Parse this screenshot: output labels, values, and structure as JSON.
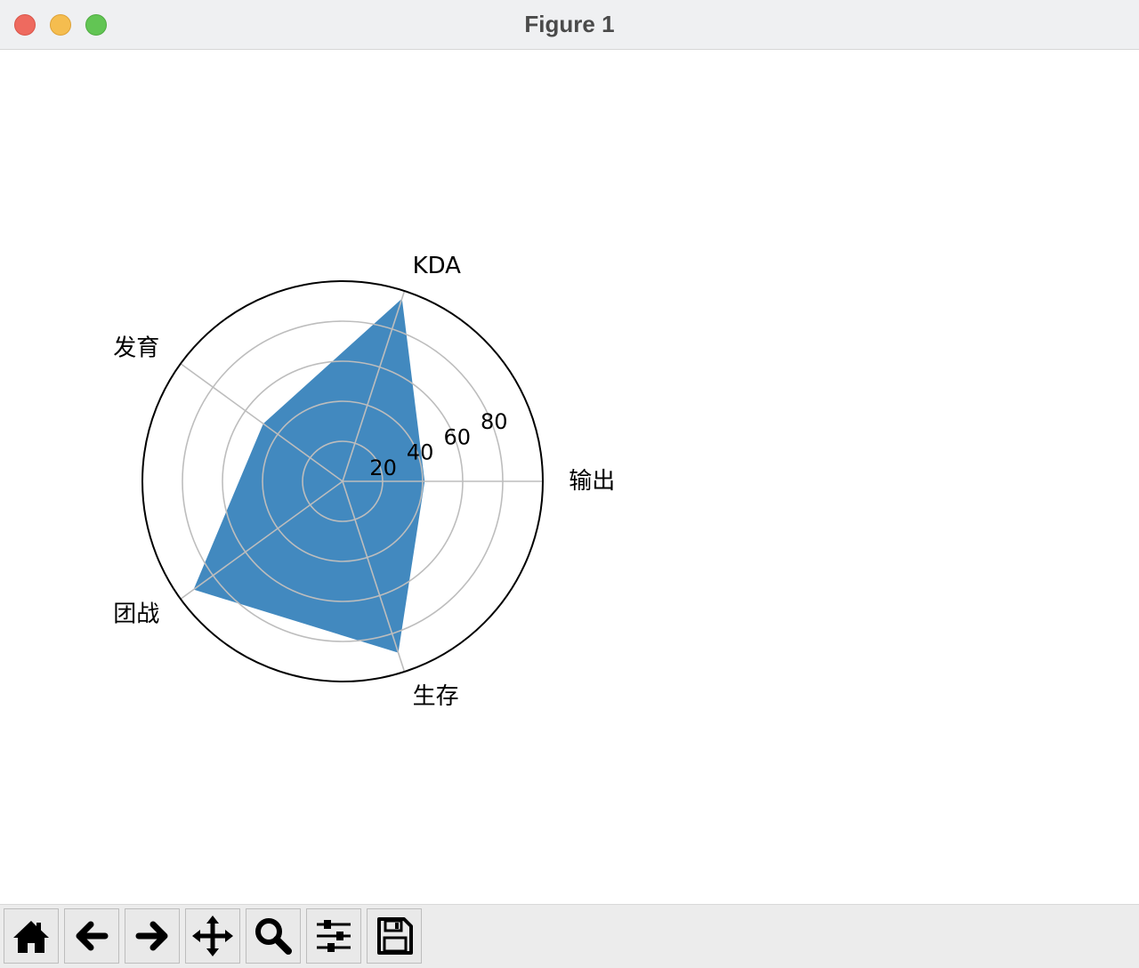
{
  "window": {
    "title": "Figure 1"
  },
  "chart_data": {
    "type": "radar",
    "categories": [
      "输出",
      "KDA",
      "发育",
      "团战",
      "生存"
    ],
    "values": [
      41,
      96,
      49,
      92,
      90
    ],
    "rticks": [
      "20",
      "40",
      "60",
      "80"
    ],
    "rtick_values": [
      20,
      40,
      60,
      80
    ],
    "rlim": [
      0,
      100
    ],
    "grid": true,
    "fill_color": "#4289bf",
    "grid_color": "#bdbdbd",
    "frame_color": "#000000"
  },
  "toolbar": {
    "buttons": [
      {
        "name": "home-button",
        "icon": "home-icon"
      },
      {
        "name": "back-button",
        "icon": "arrow-left-icon"
      },
      {
        "name": "forward-button",
        "icon": "arrow-right-icon"
      },
      {
        "name": "pan-button",
        "icon": "move-icon"
      },
      {
        "name": "zoom-button",
        "icon": "search-icon"
      },
      {
        "name": "configure-subplots-button",
        "icon": "sliders-icon"
      },
      {
        "name": "save-button",
        "icon": "save-icon"
      }
    ]
  }
}
